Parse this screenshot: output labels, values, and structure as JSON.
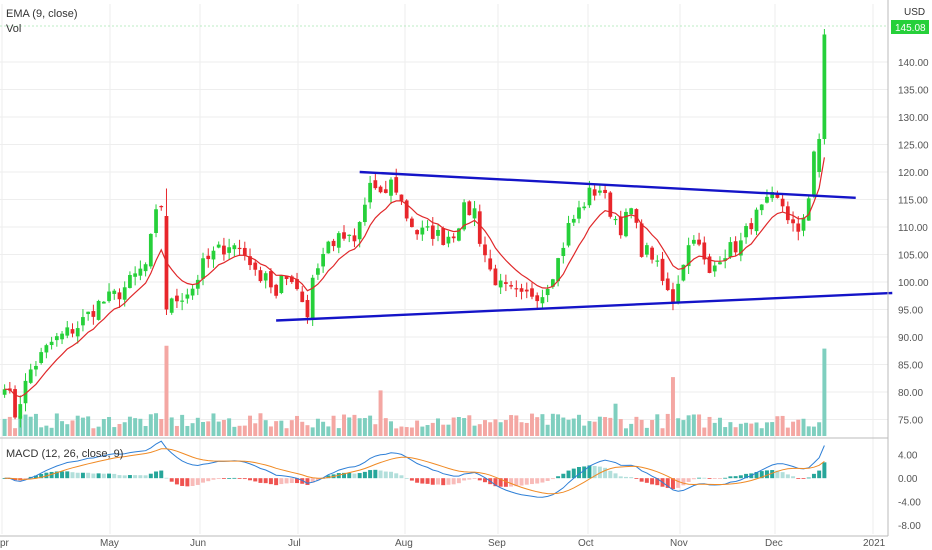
{
  "colors": {
    "up": "#26d03a",
    "down": "#e8262b",
    "ema": "#e0282a",
    "trendline": "#1414c8",
    "vol_up": "#7fcfbf",
    "vol_down": "#f4a7a3",
    "macd_line": "#2e7fd6",
    "signal_line": "#f08a24",
    "hist_pos": "#26a69a",
    "hist_pos_light": "#b2dfdb",
    "hist_neg": "#ef5350",
    "hist_neg_light": "#f8bbb9",
    "price_label_bg": "#26d03a",
    "axis_text": "#555555",
    "grid": "#eeeeee"
  },
  "legend": {
    "ema": "EMA (9, close)",
    "vol": "Vol",
    "macd": "MACD (12, 26, close, 9)"
  },
  "currency": "USD",
  "last_price_label": "145.08",
  "chart_data": [
    {
      "type": "candlestick",
      "title": "",
      "x_ticks": [
        "pr",
        "May",
        "Jun",
        "Jul",
        "Aug",
        "Sep",
        "Oct",
        "Nov",
        "Dec",
        "2021"
      ],
      "y_ticks": [
        "140.00",
        "135.00",
        "130.00",
        "125.00",
        "120.00",
        "115.00",
        "110.00",
        "105.00",
        "100.00",
        "95.00",
        "90.00",
        "85.00",
        "80.00",
        "75.00"
      ],
      "ylim": [
        72,
        148
      ],
      "anchors": [
        [
          0,
          82
        ],
        [
          2,
          76
        ],
        [
          5,
          84
        ],
        [
          9,
          89
        ],
        [
          14,
          92
        ],
        [
          18,
          96
        ],
        [
          22,
          98
        ],
        [
          25,
          101
        ],
        [
          27,
          103
        ],
        [
          29,
          112
        ],
        [
          30,
          114
        ],
        [
          31,
          95
        ],
        [
          33,
          97
        ],
        [
          36,
          99
        ],
        [
          38,
          103
        ],
        [
          40,
          105
        ],
        [
          43,
          107
        ],
        [
          45,
          106
        ],
        [
          47,
          104
        ],
        [
          48,
          101
        ],
        [
          50,
          102
        ],
        [
          52,
          97
        ],
        [
          53,
          100
        ],
        [
          55,
          101
        ],
        [
          57,
          97
        ],
        [
          58,
          94
        ],
        [
          59,
          101
        ],
        [
          62,
          107
        ],
        [
          65,
          108
        ],
        [
          67,
          107
        ],
        [
          69,
          114
        ],
        [
          70,
          118
        ],
        [
          72,
          115
        ],
        [
          74,
          118
        ],
        [
          75,
          117
        ],
        [
          77,
          112
        ],
        [
          79,
          109
        ],
        [
          82,
          109
        ],
        [
          84,
          108
        ],
        [
          86,
          109
        ],
        [
          88,
          113
        ],
        [
          90,
          113
        ],
        [
          91,
          108
        ],
        [
          93,
          102
        ],
        [
          95,
          99
        ],
        [
          97,
          98
        ],
        [
          99,
          97
        ],
        [
          101,
          98
        ],
        [
          103,
          98
        ],
        [
          106,
          104
        ],
        [
          108,
          110
        ],
        [
          110,
          113
        ],
        [
          112,
          116
        ],
        [
          114,
          117
        ],
        [
          116,
          113
        ],
        [
          118,
          110
        ],
        [
          120,
          113
        ],
        [
          122,
          106
        ],
        [
          124,
          105
        ],
        [
          126,
          100
        ],
        [
          127,
          98
        ],
        [
          128,
          97
        ],
        [
          130,
          104
        ],
        [
          132,
          109
        ],
        [
          133,
          106
        ],
        [
          135,
          101
        ],
        [
          137,
          105
        ],
        [
          139,
          106
        ],
        [
          141,
          107
        ],
        [
          143,
          111
        ],
        [
          145,
          113
        ],
        [
          147,
          115
        ],
        [
          149,
          114
        ],
        [
          150,
          112
        ],
        [
          151,
          110
        ],
        [
          152,
          108
        ],
        [
          153,
          112
        ],
        [
          154,
          116
        ],
        [
          155,
          124
        ],
        [
          156,
          126
        ],
        [
          157,
          145
        ]
      ],
      "ema_start": 78,
      "volume_ylim": [
        0,
        100
      ],
      "volume_spikes": [
        [
          31,
          95
        ],
        [
          72,
          48
        ],
        [
          117,
          34
        ],
        [
          128,
          62
        ],
        [
          157,
          92
        ]
      ],
      "trendlines": [
        {
          "name": "upper",
          "from": [
            68,
            120
          ],
          "to": [
            163,
            115.3
          ]
        },
        {
          "name": "lower",
          "from": [
            52,
            93
          ],
          "to": [
            170,
            98
          ]
        }
      ],
      "macd_ticks": [
        "4.00",
        "0.00",
        "-4.00",
        "-8.00"
      ],
      "macd_ylim": [
        -9.5,
        6.5
      ]
    }
  ]
}
